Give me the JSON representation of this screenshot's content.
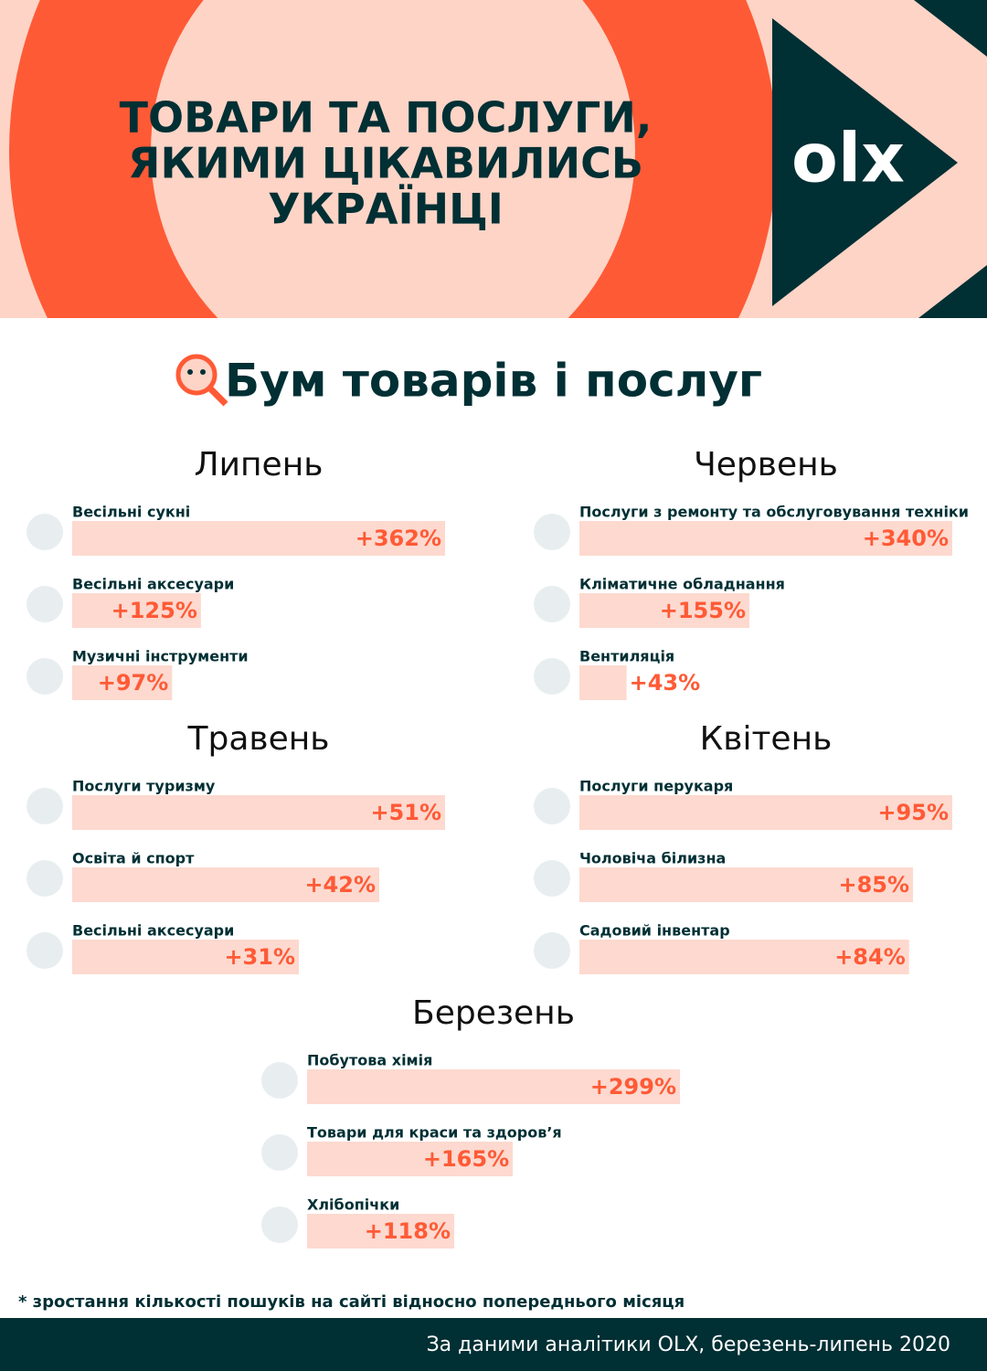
{
  "header": {
    "title_lines": [
      "ТОВАРИ ТА ПОСЛУГИ,",
      "ЯКИМИ ЦІКАВИЛИСЬ",
      "УКРАЇНЦІ"
    ],
    "logo": "olx"
  },
  "section_title": "Бум товарів і послуг",
  "chart_data": [
    {
      "type": "bar",
      "title": "Липень",
      "categories": [
        "Весільні сукні",
        "Весільні аксесуари",
        "Музичні інструменти"
      ],
      "values": [
        362,
        125,
        97
      ],
      "value_labels": [
        "+362%",
        "+125%",
        "+97%"
      ],
      "color": "#fdd9cf",
      "label_color": "#ff5a36"
    },
    {
      "type": "bar",
      "title": "Червень",
      "categories": [
        "Послуги з ремонту та обслуговування техніки",
        "Кліматичне обладнання",
        "Вентиляція"
      ],
      "values": [
        340,
        155,
        43
      ],
      "value_labels": [
        "+340%",
        "+155%",
        "+43%"
      ],
      "color": "#fdd9cf",
      "label_color": "#ff5a36"
    },
    {
      "type": "bar",
      "title": "Травень",
      "categories": [
        "Послуги туризму",
        "Освіта й спорт",
        "Весільні аксесуари"
      ],
      "values": [
        51,
        42,
        31
      ],
      "value_labels": [
        "+51%",
        "+42%",
        "+31%"
      ],
      "color": "#fdd9cf",
      "label_color": "#ff5a36"
    },
    {
      "type": "bar",
      "title": "Квітень",
      "categories": [
        "Послуги перукаря",
        "Чоловіча білизна",
        "Садовий інвентар"
      ],
      "values": [
        95,
        85,
        84
      ],
      "value_labels": [
        "+95%",
        "+85%",
        "+84%"
      ],
      "color": "#fdd9cf",
      "label_color": "#ff5a36"
    },
    {
      "type": "bar",
      "title": "Березень",
      "categories": [
        "Побутова хімія",
        "Товари для краси та здоров’я",
        "Хлібопічки"
      ],
      "values": [
        299,
        165,
        118
      ],
      "value_labels": [
        "+299%",
        "+165%",
        "+118%"
      ],
      "color": "#fdd9cf",
      "label_color": "#ff5a36"
    }
  ],
  "footnote": "* зростання кількості пошуків на сайті  відносно попереднього місяця",
  "source": "За даними аналітики OLX, березень-липень 2020"
}
